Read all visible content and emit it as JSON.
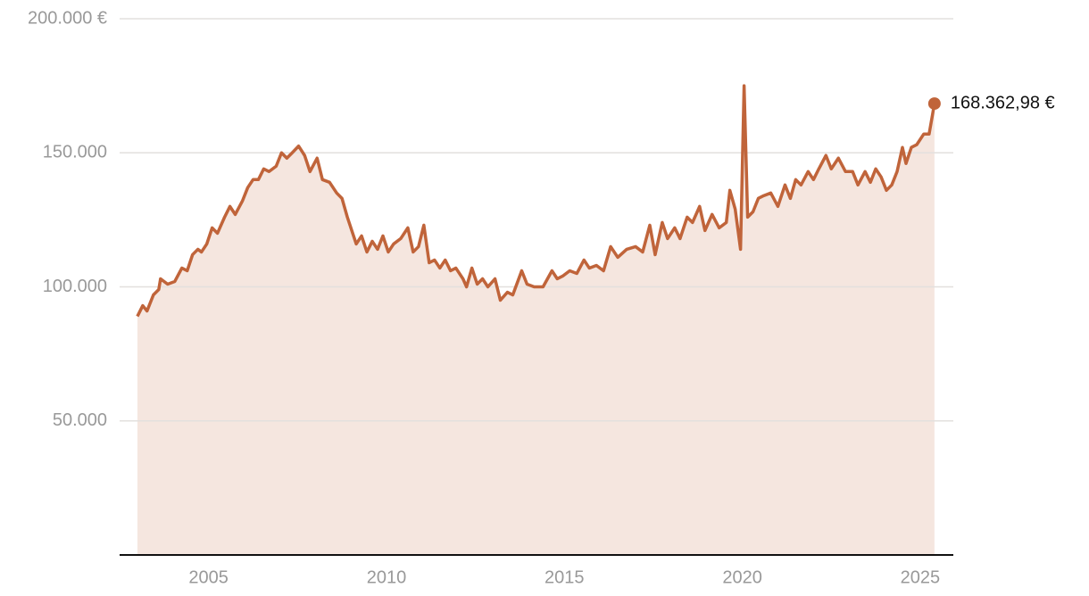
{
  "chart_data": {
    "type": "area",
    "color": "#c0643a",
    "fill": "#f5e6df",
    "grid": true,
    "xlim": [
      2002.5,
      2025.93
    ],
    "xticks": [
      2005,
      2010,
      2015,
      2020,
      2025
    ],
    "ylim": [
      0,
      200000
    ],
    "yticks": [
      {
        "value": 50000,
        "label": "50.000"
      },
      {
        "value": 100000,
        "label": "100.000"
      },
      {
        "value": 150000,
        "label": "150.000"
      },
      {
        "value": 200000,
        "label": "200.000 €"
      }
    ],
    "x": [
      2003.0,
      2003.15,
      2003.27,
      2003.45,
      2003.6,
      2003.65,
      2003.85,
      2004.05,
      2004.25,
      2004.4,
      2004.55,
      2004.7,
      2004.8,
      2004.95,
      2005.1,
      2005.25,
      2005.45,
      2005.6,
      2005.75,
      2005.95,
      2006.1,
      2006.25,
      2006.4,
      2006.55,
      2006.7,
      2006.9,
      2007.05,
      2007.2,
      2007.35,
      2007.53,
      2007.7,
      2007.85,
      2008.05,
      2008.2,
      2008.4,
      2008.6,
      2008.75,
      2008.9,
      2009.0,
      2009.15,
      2009.3,
      2009.45,
      2009.6,
      2009.75,
      2009.9,
      2010.05,
      2010.2,
      2010.4,
      2010.6,
      2010.75,
      2010.9,
      2011.05,
      2011.2,
      2011.35,
      2011.5,
      2011.65,
      2011.8,
      2011.95,
      2012.15,
      2012.25,
      2012.4,
      2012.55,
      2012.7,
      2012.85,
      2013.05,
      2013.2,
      2013.4,
      2013.55,
      2013.8,
      2013.95,
      2014.15,
      2014.4,
      2014.65,
      2014.8,
      2014.95,
      2015.15,
      2015.35,
      2015.55,
      2015.7,
      2015.9,
      2016.1,
      2016.3,
      2016.5,
      2016.75,
      2017.0,
      2017.2,
      2017.4,
      2017.55,
      2017.75,
      2017.9,
      2018.1,
      2018.25,
      2018.45,
      2018.6,
      2018.8,
      2018.95,
      2019.15,
      2019.35,
      2019.55,
      2019.65,
      2019.8,
      2019.95,
      2020.05,
      2020.15,
      2020.3,
      2020.45,
      2020.6,
      2020.8,
      2021.0,
      2021.2,
      2021.35,
      2021.5,
      2021.65,
      2021.85,
      2022.0,
      2022.15,
      2022.35,
      2022.5,
      2022.7,
      2022.9,
      2023.1,
      2023.25,
      2023.45,
      2023.6,
      2023.75,
      2023.9,
      2024.05,
      2024.2,
      2024.35,
      2024.5,
      2024.6,
      2024.75,
      2024.9,
      2025.1,
      2025.25,
      2025.4
    ],
    "values": [
      89000,
      93000,
      91000,
      97000,
      99000,
      103000,
      101000,
      102000,
      107000,
      106000,
      112000,
      114000,
      113000,
      116000,
      122000,
      120000,
      126000,
      130000,
      127000,
      132000,
      137000,
      140000,
      140000,
      144000,
      143000,
      145000,
      150000,
      148000,
      150000,
      152500,
      149000,
      143000,
      148000,
      140000,
      139000,
      135000,
      133000,
      126000,
      122000,
      116000,
      119000,
      113000,
      117000,
      114000,
      119000,
      113000,
      116000,
      118000,
      122000,
      113000,
      115000,
      123000,
      109000,
      110000,
      107000,
      110000,
      106000,
      107000,
      103000,
      100000,
      107000,
      101000,
      103000,
      100000,
      103000,
      95000,
      98000,
      97000,
      106000,
      101000,
      100000,
      100000,
      106000,
      103000,
      104000,
      106000,
      105000,
      110000,
      107000,
      108000,
      106000,
      115000,
      111000,
      114000,
      115000,
      113000,
      123000,
      112000,
      124000,
      118000,
      122000,
      118000,
      126000,
      124000,
      130000,
      121000,
      127000,
      122000,
      124000,
      136000,
      129000,
      114000,
      175000,
      126000,
      128000,
      133000,
      134000,
      135000,
      130000,
      138000,
      133000,
      140000,
      138000,
      143000,
      140000,
      144000,
      149000,
      144000,
      148000,
      143000,
      143000,
      138000,
      143000,
      139000,
      144000,
      141000,
      136000,
      138000,
      143000,
      152000,
      146000,
      152000,
      153000,
      157000,
      157000,
      168362.98
    ],
    "annotations": [
      {
        "x": 2025.4,
        "y": 168362.98,
        "label": "168.362,98 €"
      }
    ]
  }
}
